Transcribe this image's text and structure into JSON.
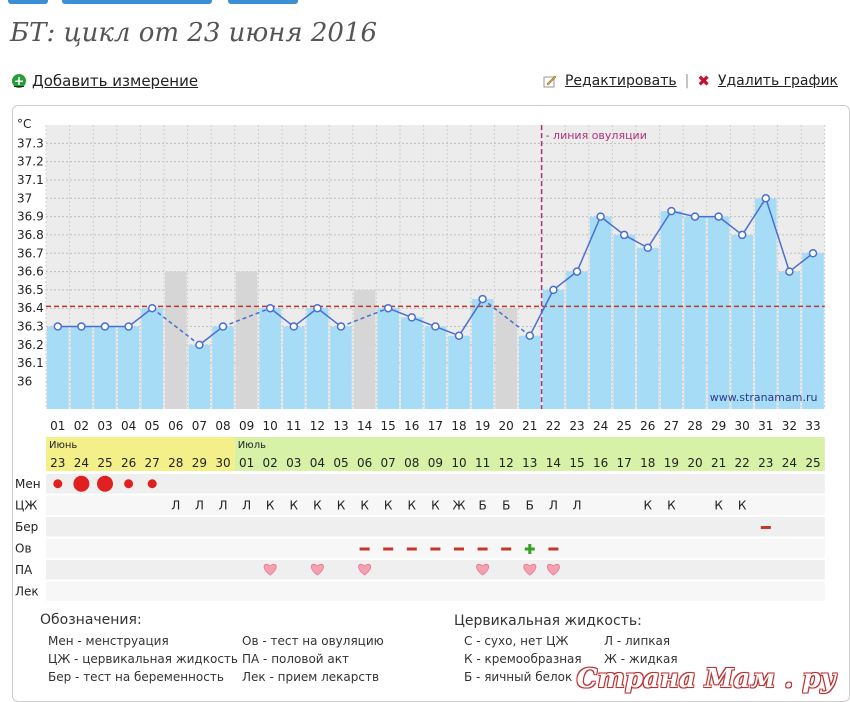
{
  "page": {
    "title": "БТ: цикл от 23 июня 2016",
    "add_label": "Добавить измерение",
    "edit_label": "Редактировать",
    "delete_label": "Удалить график"
  },
  "chart_data": {
    "type": "bar",
    "ylabel": "°C",
    "y_ticks": [
      "37.3",
      "37.2",
      "37.1",
      "37",
      "36.9",
      "36.8",
      "36.7",
      "36.6",
      "36.5",
      "36.4",
      "36.3",
      "36.2",
      "36.1",
      "36"
    ],
    "ylim": [
      35.85,
      37.4
    ],
    "cover_line": 36.41,
    "ovulation_day": 22,
    "ovulation_label": "- линия овуляции",
    "site_label": "www.stranamam.ru",
    "days": [
      "01",
      "02",
      "03",
      "04",
      "05",
      "06",
      "07",
      "08",
      "09",
      "10",
      "11",
      "12",
      "13",
      "14",
      "15",
      "16",
      "17",
      "18",
      "19",
      "20",
      "21",
      "22",
      "23",
      "24",
      "25",
      "26",
      "27",
      "28",
      "29",
      "30",
      "31",
      "32",
      "33"
    ],
    "temps": [
      36.3,
      36.3,
      36.3,
      36.3,
      36.4,
      null,
      36.2,
      36.3,
      null,
      36.4,
      36.3,
      36.4,
      36.3,
      null,
      36.4,
      36.35,
      36.3,
      36.25,
      36.45,
      null,
      36.25,
      36.5,
      36.6,
      36.9,
      36.8,
      36.73,
      36.93,
      36.9,
      36.9,
      36.8,
      37.0,
      36.6,
      36.7
    ],
    "gray_bars": {
      "06": 36.6,
      "09": 36.6,
      "14": 36.5,
      "20": 36.4
    },
    "grid": true
  },
  "calendar": {
    "months": [
      {
        "label": "Июнь",
        "from": 0,
        "to": 7
      },
      {
        "label": "Июль",
        "from": 8,
        "to": 32
      }
    ],
    "dates": [
      "23",
      "24",
      "25",
      "26",
      "27",
      "28",
      "29",
      "30",
      "01",
      "02",
      "03",
      "04",
      "05",
      "06",
      "07",
      "08",
      "09",
      "10",
      "11",
      "12",
      "13",
      "14",
      "15",
      "16",
      "17",
      "18",
      "19",
      "20",
      "21",
      "22",
      "23",
      "24",
      "25"
    ],
    "colors": {
      "june_bg": "#f3f08a",
      "july_bg": "#d7f1a6"
    }
  },
  "rows": {
    "labels": [
      "Мен",
      "ЦЖ",
      "Бер",
      "Ов",
      "ПА",
      "Лек"
    ],
    "men": [
      1,
      2,
      2,
      1,
      1,
      0,
      0,
      0,
      0,
      0,
      0,
      0,
      0,
      0,
      0,
      0,
      0,
      0,
      0,
      0,
      0,
      0,
      0,
      0,
      0,
      0,
      0,
      0,
      0,
      0,
      0,
      0,
      0
    ],
    "cf": [
      "",
      "",
      "",
      "",
      "",
      "Л",
      "Л",
      "Л",
      "Л",
      "К",
      "К",
      "К",
      "К",
      "К",
      "К",
      "К",
      "К",
      "Ж",
      "Б",
      "Б",
      "Б",
      "Л",
      "Л",
      "",
      "",
      "К",
      "К",
      "",
      "К",
      "К",
      "",
      "",
      ""
    ],
    "ber": [
      "",
      "",
      "",
      "",
      "",
      "",
      "",
      "",
      "",
      "",
      "",
      "",
      "",
      "",
      "",
      "",
      "",
      "",
      "",
      "",
      "",
      "",
      "",
      "",
      "",
      "",
      "",
      "",
      "",
      "",
      "-",
      "",
      ""
    ],
    "ov": [
      "",
      "",
      "",
      "",
      "",
      "",
      "",
      "",
      "",
      "",
      "",
      "",
      "",
      "-",
      "-",
      "-",
      "-",
      "-",
      "-",
      "-",
      "+",
      "-",
      "",
      "",
      "",
      "",
      "",
      "",
      "",
      "",
      "",
      "",
      ""
    ],
    "pa": [
      0,
      0,
      0,
      0,
      0,
      0,
      0,
      0,
      0,
      1,
      0,
      1,
      0,
      1,
      0,
      0,
      0,
      0,
      1,
      0,
      1,
      1,
      0,
      0,
      0,
      0,
      0,
      0,
      0,
      0,
      0,
      0,
      0
    ]
  },
  "legend": {
    "title": "Обозначения:",
    "col1": [
      "Мен - менструация",
      "ЦЖ - цервикальная жидкость",
      "Бер - тест на беременность"
    ],
    "col2": [
      "Ов - тест на овуляцию",
      "ПА - половой акт",
      "Лек - прием лекарств"
    ],
    "cf_title": "Цервикальная жидкость:",
    "cf_col1": [
      "С - сухо, нет ЦЖ",
      "К - кремообразная",
      "Б - яичный белок"
    ],
    "cf_col2": [
      "Л - липкая",
      "Ж - жидкая"
    ]
  },
  "watermark": "Страна Мам . ру",
  "colors": {
    "bar": "#a6dcf5",
    "bar_stroke": "#7cc3e8",
    "gray_bar": "#d6d6d6",
    "line": "#4a6fd1",
    "cover": "#c0392b",
    "ovulation": "#b0307a",
    "men": "#e02020",
    "heart": "#f4a0b0"
  }
}
